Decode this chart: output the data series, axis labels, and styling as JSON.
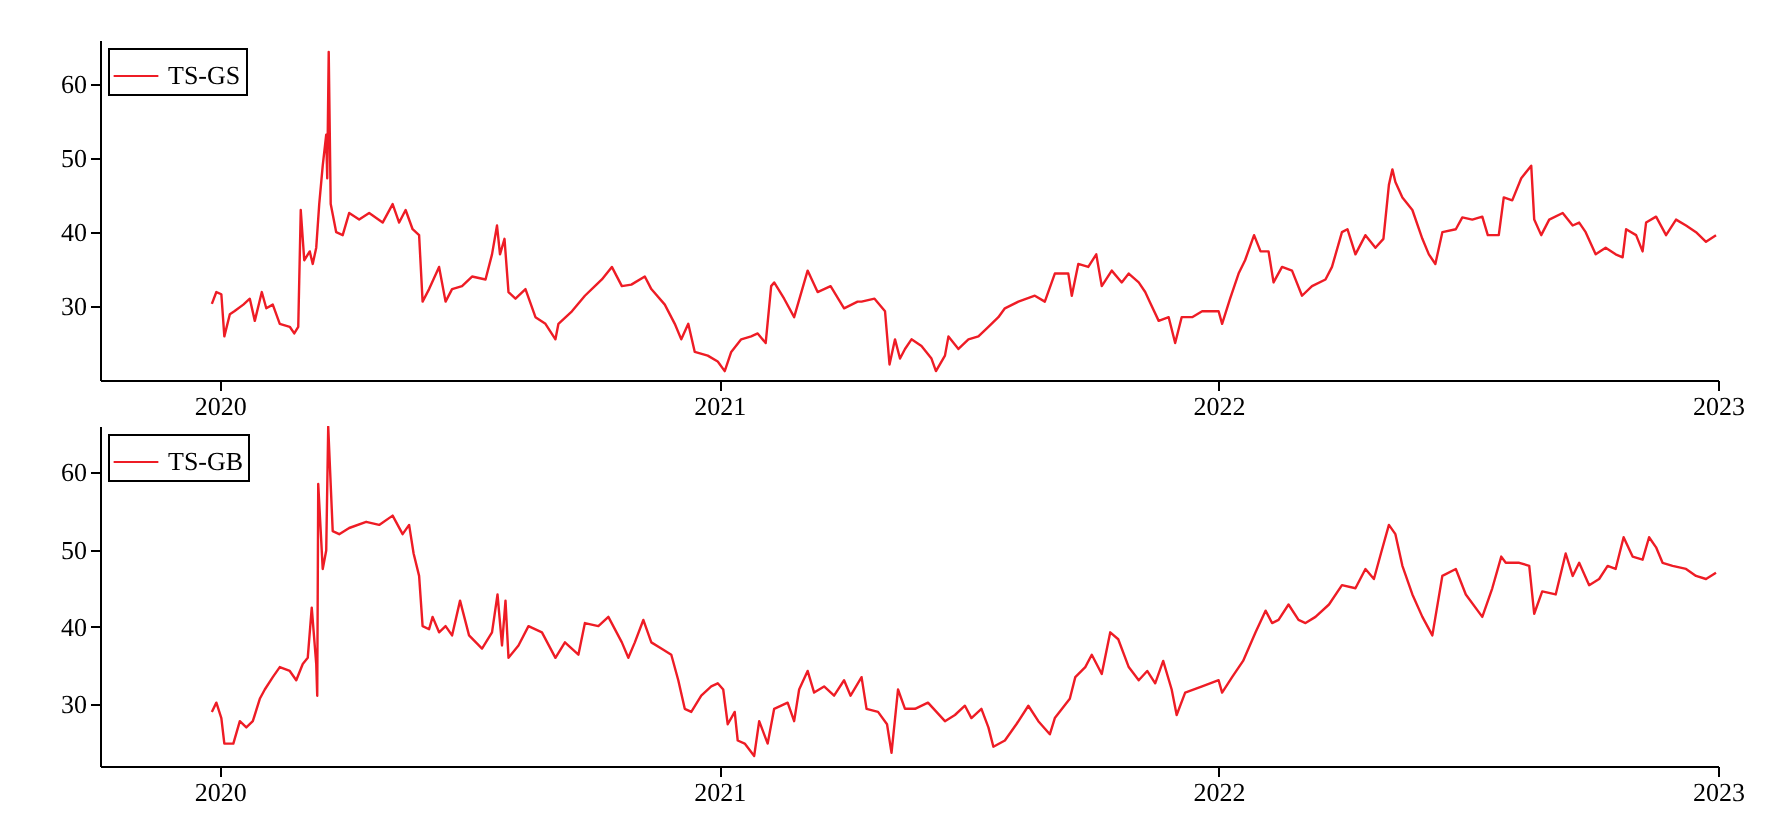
{
  "chart_data": [
    {
      "type": "line",
      "legend": "top left",
      "xlim": [
        2019.76,
        2023
      ],
      "xticks": [
        2020,
        2021,
        2022,
        2023
      ],
      "ylim": [
        20,
        66
      ],
      "yticks": [
        30,
        40,
        50,
        60
      ],
      "x": [
        2019.984,
        2019.993,
        2020.003,
        2020.009,
        2020.02,
        2020.029,
        2020.047,
        2020.06,
        2020.07,
        2020.084,
        2020.093,
        2020.106,
        2020.12,
        2020.14,
        2020.149,
        2020.157,
        2020.162,
        2020.169,
        2020.18,
        2020.186,
        2020.193,
        2020.199,
        2020.206,
        2020.213,
        2020.215,
        2020.218,
        2020.222,
        2020.233,
        2020.246,
        2020.259,
        2020.279,
        2020.299,
        2020.326,
        2020.346,
        2020.359,
        2020.372,
        2020.386,
        2020.399,
        2020.406,
        2020.419,
        2020.439,
        2020.452,
        2020.465,
        2020.485,
        2020.505,
        2020.532,
        2020.545,
        2020.555,
        2020.561,
        2020.57,
        2020.578,
        2020.592,
        2020.612,
        2020.632,
        2020.652,
        2020.672,
        2020.678,
        2020.705,
        2020.731,
        2020.751,
        2020.765,
        2020.785,
        2020.805,
        2020.824,
        2020.851,
        2020.864,
        2020.891,
        2020.911,
        2020.924,
        2020.938,
        2020.951,
        2020.977,
        2020.997,
        2021.011,
        2021.024,
        2021.044,
        2021.064,
        2021.077,
        2021.093,
        2021.104,
        2021.11,
        2021.13,
        2021.15,
        2021.168,
        2021.177,
        2021.197,
        2021.223,
        2021.25,
        2021.277,
        2021.285,
        2021.311,
        2021.332,
        2021.341,
        2021.352,
        2021.362,
        2021.372,
        2021.385,
        2021.405,
        2021.425,
        2021.434,
        2021.452,
        2021.459,
        2021.479,
        2021.499,
        2021.519,
        2021.539,
        2021.559,
        2021.572,
        2021.599,
        2021.632,
        2021.652,
        2021.672,
        2021.699,
        2021.706,
        2021.719,
        2021.739,
        2021.755,
        2021.766,
        2021.786,
        2021.806,
        2021.82,
        2021.84,
        2021.853,
        2021.862,
        2021.88,
        2021.9,
        2021.913,
        2021.926,
        2021.947,
        2021.967,
        2022.0,
        2022.007,
        2022.023,
        2022.04,
        2022.053,
        2022.071,
        2022.084,
        2022.1,
        2022.11,
        2022.127,
        2022.147,
        2022.167,
        2022.187,
        2022.214,
        2022.227,
        2022.247,
        2022.258,
        2022.274,
        2022.294,
        2022.314,
        2022.33,
        2022.341,
        2022.348,
        2022.354,
        2022.368,
        2022.388,
        2022.408,
        2022.421,
        2022.434,
        2022.448,
        2022.475,
        2022.488,
        2022.508,
        2022.528,
        2022.539,
        2022.561,
        2022.571,
        2022.588,
        2022.606,
        2022.626,
        2022.632,
        2022.646,
        2022.662,
        2022.689,
        2022.709,
        2022.722,
        2022.735,
        2022.755,
        2022.775,
        2022.795,
        2022.809,
        2022.816,
        2022.836,
        2022.849,
        2022.856,
        2022.876,
        2022.896,
        2022.916,
        2022.936,
        2022.956,
        2022.976,
        2022.996
      ],
      "series": [
        {
          "name": "TS-GS",
          "color": "#ee1c25",
          "values": [
            30.3,
            31.9,
            31.6,
            25.9,
            28.9,
            29.3,
            30.2,
            31,
            28,
            31.9,
            29.7,
            30.2,
            27.6,
            27.2,
            26.3,
            27.2,
            43,
            36.2,
            37.4,
            35.7,
            37.9,
            43.8,
            49,
            53.2,
            47.3,
            64.4,
            43.8,
            40,
            39.6,
            42.6,
            41.7,
            42.6,
            41.3,
            43.8,
            41.3,
            43,
            40.4,
            39.6,
            30.6,
            32.3,
            35.3,
            30.6,
            32.3,
            32.7,
            34,
            33.6,
            37,
            40.9,
            37,
            39.1,
            31.9,
            31,
            32.3,
            28.5,
            27.6,
            25.5,
            27.6,
            29.3,
            31.4,
            32.7,
            33.6,
            35.3,
            32.7,
            32.9,
            34,
            32.3,
            30.2,
            27.6,
            25.5,
            27.6,
            23.8,
            23.3,
            22.5,
            21.2,
            23.8,
            25.5,
            25.9,
            26.3,
            25,
            32.7,
            33.2,
            31,
            28.5,
            32.7,
            34.8,
            31.9,
            32.7,
            29.7,
            30.6,
            30.6,
            31,
            29.3,
            22.1,
            25.5,
            22.9,
            24.2,
            25.5,
            24.6,
            22.9,
            21.2,
            23.3,
            25.9,
            24.2,
            25.5,
            25.9,
            27.2,
            28.5,
            29.7,
            30.6,
            31.4,
            30.6,
            34.4,
            34.4,
            31.4,
            35.7,
            35.3,
            37,
            32.7,
            34.8,
            33.2,
            34.4,
            33.2,
            31.9,
            30.6,
            28,
            28.5,
            25,
            28.5,
            28.5,
            29.3,
            29.3,
            27.6,
            31,
            34.4,
            36.2,
            39.6,
            37.4,
            37.4,
            33.2,
            35.3,
            34.8,
            31.4,
            32.7,
            33.6,
            35.3,
            40,
            40.4,
            37,
            39.6,
            37.9,
            39.1,
            46.4,
            48.5,
            46.8,
            44.7,
            43,
            39.1,
            37,
            35.7,
            40,
            40.4,
            42,
            41.7,
            42.1,
            39.6,
            39.6,
            44.7,
            44.3,
            47.3,
            49,
            41.7,
            39.6,
            41.7,
            42.6,
            40.9,
            41.3,
            40,
            37,
            37.9,
            37,
            36.6,
            40.4,
            39.6,
            37.4,
            41.3,
            42.1,
            39.6,
            41.7,
            40.9,
            40,
            38.7,
            39.6
          ]
        }
      ]
    },
    {
      "type": "line",
      "legend": "top left",
      "xlim": [
        2019.76,
        2023
      ],
      "xticks": [
        2020,
        2021,
        2022,
        2023
      ],
      "ylim": [
        22,
        66
      ],
      "yticks": [
        30,
        40,
        50,
        60
      ],
      "x": [
        2019.984,
        2019.993,
        2020.003,
        2020.009,
        2020.027,
        2020.04,
        2020.053,
        2020.066,
        2020.08,
        2020.09,
        2020.106,
        2020.12,
        2020.14,
        2020.153,
        2020.166,
        2020.176,
        2020.184,
        2020.193,
        2020.195,
        2020.197,
        2020.206,
        2020.213,
        2020.217,
        2020.226,
        2020.239,
        2020.259,
        2020.293,
        2020.319,
        2020.346,
        2020.366,
        2020.379,
        2020.388,
        2020.399,
        2020.406,
        2020.419,
        2020.426,
        2020.439,
        2020.452,
        2020.465,
        2020.481,
        2020.499,
        2020.525,
        2020.545,
        2020.556,
        2020.565,
        2020.572,
        2020.578,
        2020.598,
        2020.618,
        2020.645,
        2020.672,
        2020.691,
        2020.718,
        2020.731,
        2020.758,
        2020.778,
        2020.805,
        2020.818,
        2020.831,
        2020.848,
        2020.864,
        2020.884,
        2020.904,
        2020.918,
        2020.931,
        2020.944,
        2020.964,
        2020.984,
        2020.997,
        2021.008,
        2021.017,
        2021.031,
        2021.037,
        2021.051,
        2021.07,
        2021.08,
        2021.097,
        2021.11,
        2021.137,
        2021.15,
        2021.16,
        2021.177,
        2021.19,
        2021.21,
        2021.23,
        2021.25,
        2021.263,
        2021.285,
        2021.295,
        2021.318,
        2021.336,
        2021.345,
        2021.358,
        2021.372,
        2021.392,
        2021.418,
        2021.452,
        2021.472,
        2021.492,
        2021.505,
        2021.525,
        2021.539,
        2021.549,
        2021.572,
        2021.595,
        2021.619,
        2021.639,
        2021.662,
        2021.672,
        2021.702,
        2021.713,
        2021.733,
        2021.746,
        2021.766,
        2021.783,
        2021.799,
        2021.82,
        2021.84,
        2021.857,
        2021.873,
        2021.889,
        2021.906,
        2021.916,
        2021.933,
        2021.967,
        2022.0,
        2022.007,
        2022.027,
        2022.049,
        2022.074,
        2022.094,
        2022.107,
        2022.12,
        2022.14,
        2022.16,
        2022.174,
        2022.194,
        2022.221,
        2022.247,
        2022.274,
        2022.294,
        2022.311,
        2022.325,
        2022.341,
        2022.354,
        2022.368,
        2022.388,
        2022.408,
        2022.428,
        2022.448,
        2022.475,
        2022.495,
        2022.528,
        2022.548,
        2022.566,
        2022.575,
        2022.602,
        2022.622,
        2022.632,
        2022.648,
        2022.675,
        2022.695,
        2022.709,
        2022.722,
        2022.742,
        2022.762,
        2022.779,
        2022.795,
        2022.811,
        2022.829,
        2022.849,
        2022.862,
        2022.876,
        2022.889,
        2022.909,
        2022.936,
        2022.956,
        2022.976,
        2022.996
      ],
      "series": [
        {
          "name": "TS-GB",
          "color": "#ee1c25",
          "values": [
            29,
            30.2,
            28.2,
            24.9,
            24.9,
            27.8,
            27,
            27.8,
            30.7,
            31.9,
            33.5,
            34.8,
            34.3,
            33.1,
            35.2,
            36,
            42.5,
            35.2,
            31.1,
            58.5,
            47.5,
            49.9,
            65.9,
            52.4,
            52,
            52.8,
            53.6,
            53.2,
            54.4,
            52,
            53.2,
            49.5,
            46.6,
            40.1,
            39.7,
            41.3,
            39.3,
            40.1,
            38.9,
            43.4,
            38.9,
            37.2,
            39.3,
            44.2,
            37.6,
            43.4,
            36,
            37.6,
            40.1,
            39.3,
            36,
            38,
            36.4,
            40.5,
            40.1,
            41.3,
            38,
            36,
            38,
            40.9,
            38,
            37.2,
            36.4,
            33.1,
            29.4,
            29,
            31.1,
            32.3,
            32.7,
            31.9,
            27.4,
            29,
            25.3,
            24.9,
            23.3,
            27.8,
            24.9,
            29.4,
            30.2,
            27.8,
            31.9,
            34.3,
            31.5,
            32.3,
            31.1,
            33.1,
            31.1,
            33.5,
            29.4,
            29,
            27.4,
            23.7,
            31.9,
            29.4,
            29.4,
            30.2,
            27.8,
            28.6,
            29.8,
            28.2,
            29.4,
            27,
            24.5,
            25.3,
            27.4,
            29.8,
            27.8,
            26.1,
            28.2,
            30.7,
            33.5,
            34.8,
            36.4,
            33.9,
            39.3,
            38.4,
            34.8,
            33.1,
            34.3,
            32.7,
            35.6,
            31.9,
            28.6,
            31.5,
            32.3,
            33.1,
            31.5,
            33.5,
            35.6,
            39.3,
            42.1,
            40.5,
            40.9,
            42.9,
            40.9,
            40.5,
            41.3,
            42.9,
            45.4,
            45,
            47.5,
            46.2,
            49.5,
            53.2,
            52,
            47.9,
            44.2,
            41.3,
            38.9,
            46.6,
            47.5,
            44.2,
            41.3,
            45,
            49.1,
            48.3,
            48.3,
            47.9,
            41.7,
            44.6,
            44.2,
            49.5,
            46.6,
            48.3,
            45.4,
            46.2,
            47.9,
            47.5,
            51.6,
            49.1,
            48.7,
            51.6,
            50.3,
            48.3,
            47.9,
            47.5,
            46.6,
            46.2,
            47
          ]
        }
      ]
    }
  ]
}
